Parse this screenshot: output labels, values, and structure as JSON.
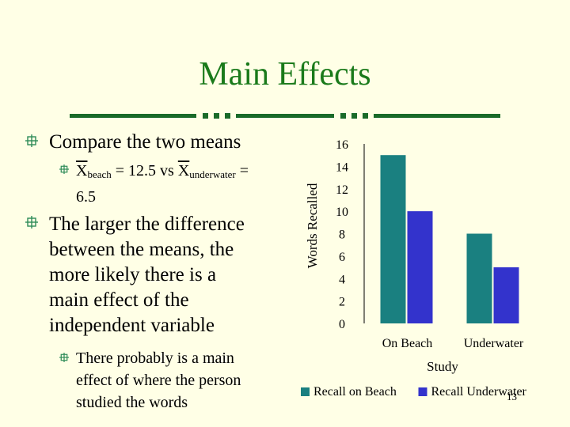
{
  "slide": {
    "title": "Main Effects",
    "page_number": "13",
    "colors": {
      "title": "#1a7a1a",
      "background": "#ffffe6",
      "bullet_icon": "#2e8b57"
    }
  },
  "bullets": [
    {
      "text": "Compare the two means",
      "sub": [
        {
          "x1": "X",
          "s1": "beach",
          "mid": " = 12.5 vs ",
          "x2": "X",
          "s2": "underwater",
          "tail": " =",
          "line2": "6.5"
        }
      ]
    },
    {
      "lines": [
        "The larger the difference",
        "between the means, the",
        "more likely there is a",
        "main effect of the",
        "independent variable"
      ],
      "sub": [
        {
          "lines": [
            "There probably is a main",
            "effect of where the person",
            "studied the words"
          ]
        }
      ]
    }
  ],
  "chart_data": {
    "type": "bar",
    "categories": [
      "On Beach",
      "Underwater"
    ],
    "series": [
      {
        "name": "Recall on Beach",
        "values": [
          15,
          8
        ],
        "color": "#1a8080"
      },
      {
        "name": "Recall Underwater",
        "values": [
          10,
          5
        ],
        "color": "#3333cc"
      }
    ],
    "xlabel": "Study",
    "ylabel": "Words Recalled",
    "ylim": [
      0,
      16
    ],
    "yticks": [
      "0",
      "2",
      "4",
      "6",
      "8",
      "10",
      "12",
      "14",
      "16"
    ],
    "grid": false,
    "legend": "bottom"
  }
}
